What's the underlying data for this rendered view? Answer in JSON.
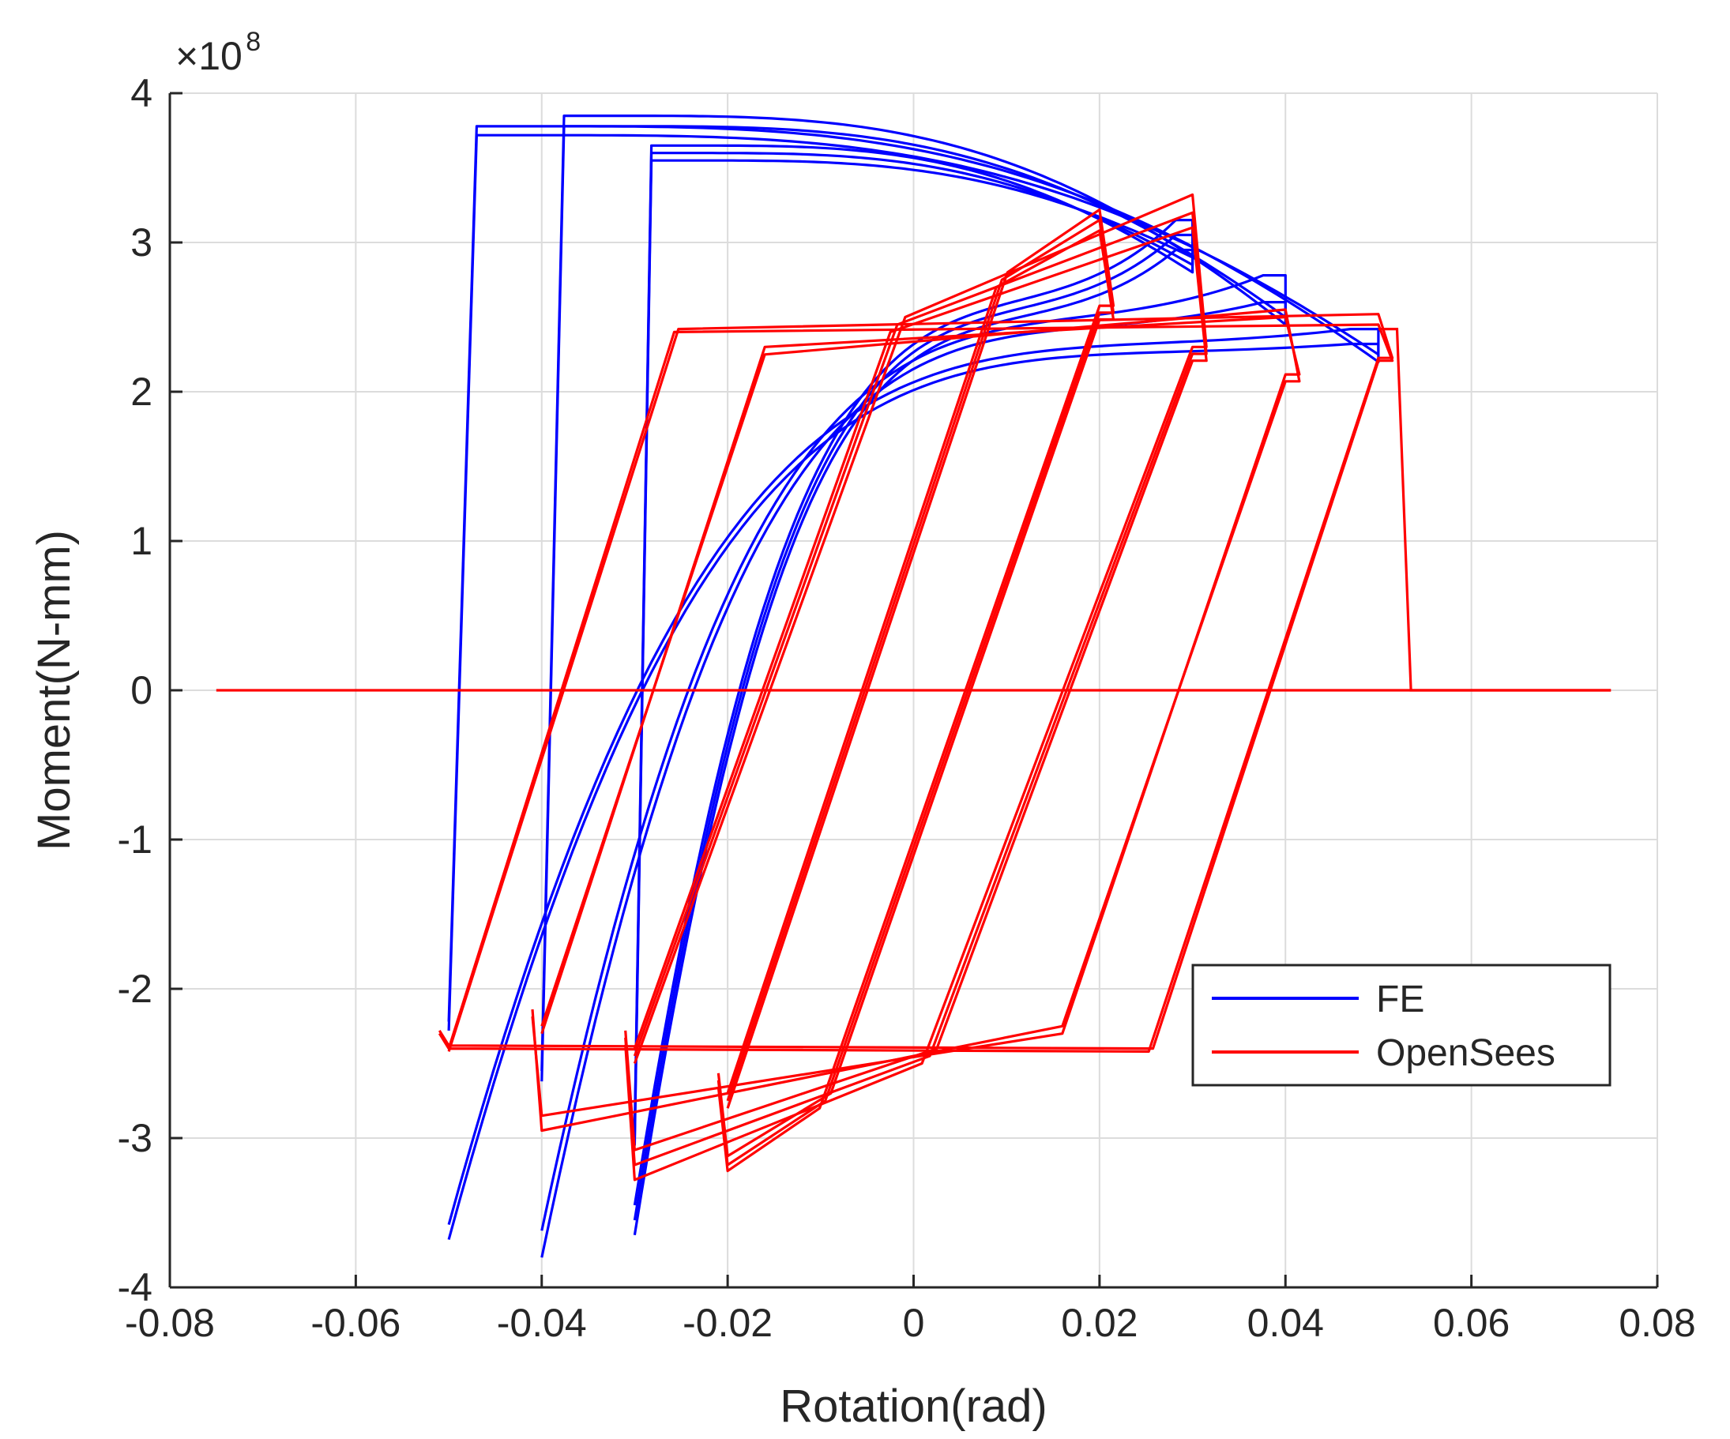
{
  "chart_data": {
    "type": "line",
    "xlabel": "Rotation(rad)",
    "ylabel": "Moment(N-mm)",
    "y_exponent": {
      "base": "×10",
      "power": "8"
    },
    "xlim": [
      -0.08,
      0.08
    ],
    "ylim": [
      -4,
      4
    ],
    "x_ticks": [
      -0.08,
      -0.06,
      -0.04,
      -0.02,
      0,
      0.02,
      0.04,
      0.06,
      0.08
    ],
    "x_tick_labels": [
      "-0.08",
      "-0.06",
      "-0.04",
      "-0.02",
      "0",
      "0.02",
      "0.04",
      "0.06",
      "0.08"
    ],
    "y_ticks": [
      -4,
      -3,
      -2,
      -1,
      0,
      1,
      2,
      3,
      4
    ],
    "y_tick_labels": [
      "-4",
      "-3",
      "-2",
      "-1",
      "0",
      "1",
      "2",
      "3",
      "4"
    ],
    "grid": true,
    "legend_position": "bottom-right",
    "series": [
      {
        "name": "FE",
        "color": "#0000ff",
        "style": "smooth",
        "loops": [
          {
            "amp": 0.03,
            "top": 3.15,
            "bottom": -3.05,
            "pre_peak": 2.55,
            "post_peak": 2.9,
            "k": 110
          },
          {
            "amp": 0.03,
            "top": 3.05,
            "bottom": -3.0,
            "pre_peak": 2.5,
            "post_peak": 2.85,
            "k": 110
          },
          {
            "amp": 0.03,
            "top": 2.95,
            "bottom": -2.95,
            "pre_peak": 2.45,
            "post_peak": 2.8,
            "k": 110
          },
          {
            "amp": 0.04,
            "top": 2.78,
            "bottom": -2.62,
            "pre_peak": 2.45,
            "post_peak": 2.5,
            "k": 80
          },
          {
            "amp": 0.04,
            "top": 2.6,
            "bottom": -2.55,
            "pre_peak": 2.4,
            "post_peak": 2.45,
            "k": 80
          },
          {
            "amp": 0.05,
            "top": 2.42,
            "bottom": -2.28,
            "pre_peak": 2.3,
            "post_peak": 2.25,
            "k": 60
          },
          {
            "amp": 0.05,
            "top": 2.32,
            "bottom": -2.22,
            "pre_peak": 2.25,
            "post_peak": 2.2,
            "k": 60
          }
        ]
      },
      {
        "name": "OpenSees",
        "color": "#ff0000",
        "style": "bilinear",
        "loops": [
          {
            "amp": 0.02,
            "top": 3.22,
            "bottom": -3.22,
            "yield": 2.8
          },
          {
            "amp": 0.02,
            "top": 3.15,
            "bottom": -3.18,
            "yield": 2.75
          },
          {
            "amp": 0.02,
            "top": 3.08,
            "bottom": -3.12,
            "yield": 2.7
          },
          {
            "amp": 0.03,
            "top": 3.32,
            "bottom": -3.28,
            "yield": 2.5
          },
          {
            "amp": 0.03,
            "top": 3.2,
            "bottom": -3.18,
            "yield": 2.45
          },
          {
            "amp": 0.03,
            "top": 3.1,
            "bottom": -3.08,
            "yield": 2.4
          },
          {
            "amp": 0.04,
            "top": 2.55,
            "bottom": -2.95,
            "yield": 2.25
          },
          {
            "amp": 0.04,
            "top": 2.5,
            "bottom": -2.85,
            "yield": 2.3
          },
          {
            "amp": 0.05,
            "top": 2.52,
            "bottom": -2.4,
            "yield": 2.42
          },
          {
            "amp": 0.05,
            "top": 2.45,
            "bottom": -2.38,
            "yield": 2.4
          }
        ],
        "fracture_path": [
          [
            0.05,
            2.42
          ],
          [
            0.052,
            2.42
          ],
          [
            0.0535,
            0.0
          ],
          [
            0.075,
            0.0
          ]
        ],
        "zero_line": [
          [
            -0.075,
            0.0
          ],
          [
            0.075,
            0.0
          ]
        ]
      }
    ]
  }
}
